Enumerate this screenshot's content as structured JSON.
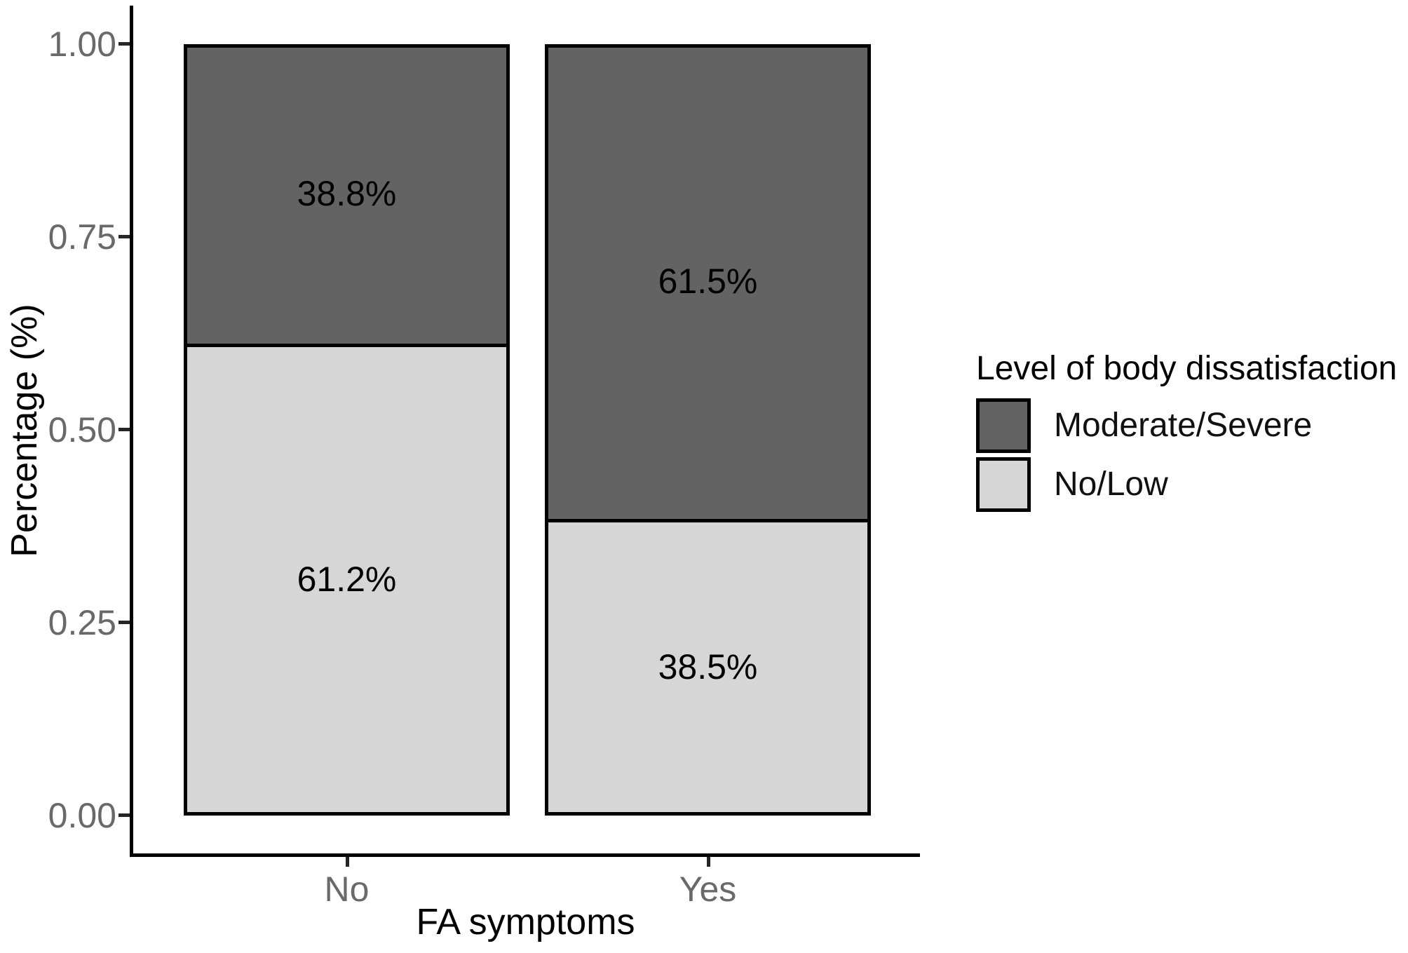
{
  "colors": {
    "bar_dark": "#636363",
    "bar_light": "#d6d6d6",
    "border": "#000000",
    "axis_text": "#696969",
    "label_text": "#000000",
    "background": "#ffffff"
  },
  "chart_data": {
    "type": "bar",
    "stacked": true,
    "title": "",
    "xlabel": "FA symptoms",
    "ylabel": "Percentage (%)",
    "categories": [
      "No",
      "Yes"
    ],
    "series": [
      {
        "name": "No/Low",
        "color": "#d6d6d6",
        "values": [
          0.612,
          0.385
        ],
        "labels": [
          "61.2%",
          "38.5%"
        ]
      },
      {
        "name": "Moderate/Severe",
        "color": "#636363",
        "values": [
          0.388,
          0.615
        ],
        "labels": [
          "38.8%",
          "61.5%"
        ]
      }
    ],
    "ylim": [
      0,
      1
    ],
    "yticks": [
      {
        "value": 0.0,
        "label": "0.00"
      },
      {
        "value": 0.25,
        "label": "0.25"
      },
      {
        "value": 0.5,
        "label": "0.50"
      },
      {
        "value": 0.75,
        "label": "0.75"
      },
      {
        "value": 1.0,
        "label": "1.00"
      }
    ],
    "grid": false,
    "legend": {
      "title": "Level of body dissatisfaction",
      "position": "right",
      "entries": [
        {
          "label": "Moderate/Severe",
          "color": "#636363"
        },
        {
          "label": "No/Low",
          "color": "#d6d6d6"
        }
      ]
    }
  }
}
